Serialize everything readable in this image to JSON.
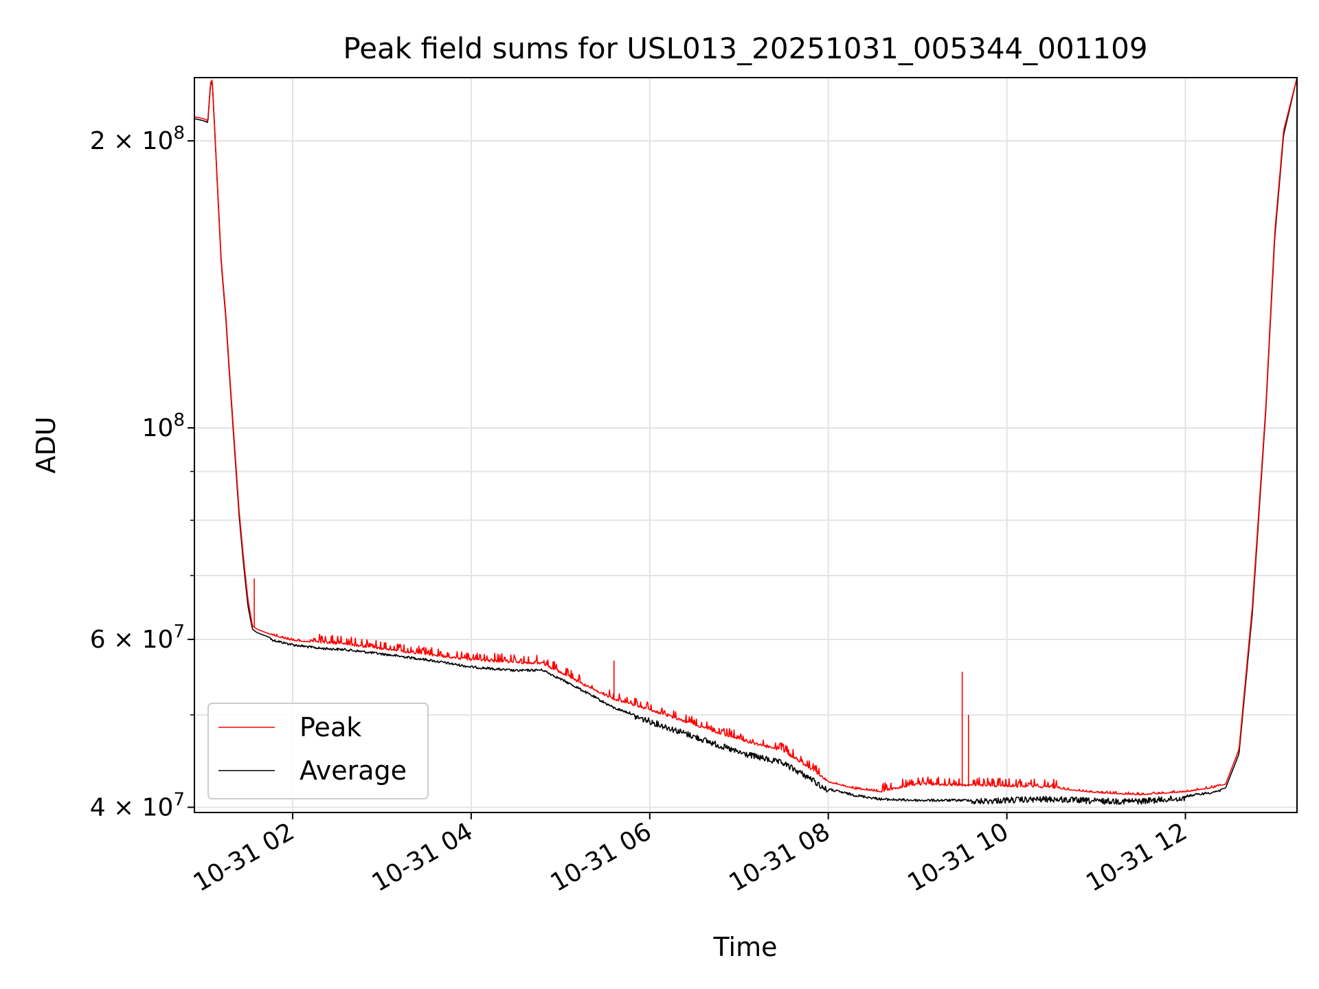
{
  "chart_data": {
    "type": "line",
    "title": "Peak field sums for USL013_20251031_005344_001109",
    "xlabel": "Time",
    "ylabel": "ADU",
    "yscale": "log",
    "x_unit": "hours since 10-31 00:00",
    "xlim": [
      0.9,
      13.25
    ],
    "ylim": [
      39500000,
      233000000
    ],
    "grid": true,
    "legend_position": "lower-left",
    "x_ticks": [
      {
        "value": 2,
        "label": "10-31 02"
      },
      {
        "value": 4,
        "label": "10-31 04"
      },
      {
        "value": 6,
        "label": "10-31 06"
      },
      {
        "value": 8,
        "label": "10-31 08"
      },
      {
        "value": 10,
        "label": "10-31 10"
      },
      {
        "value": 12,
        "label": "10-31 12"
      }
    ],
    "y_major_ticks": [
      {
        "value": 40000000,
        "mantissa": "4",
        "exponent": "7"
      },
      {
        "value": 60000000,
        "mantissa": "6",
        "exponent": "7"
      },
      {
        "value": 100000000,
        "mantissa": "",
        "exponent": "8"
      },
      {
        "value": 200000000,
        "mantissa": "2",
        "exponent": "8"
      }
    ],
    "y_minor_ticks": [
      50000000,
      70000000,
      80000000,
      90000000
    ],
    "series": [
      {
        "name": "Peak",
        "color": "#ff0000",
        "x": [
          0.9,
          1.0,
          1.05,
          1.08,
          1.1,
          1.2,
          1.25,
          1.3,
          1.4,
          1.45,
          1.5,
          1.55,
          1.6,
          1.7,
          1.8,
          2.0,
          2.3,
          2.6,
          3.0,
          3.5,
          4.0,
          4.5,
          4.8,
          5.2,
          5.6,
          6.0,
          6.5,
          7.0,
          7.5,
          7.8,
          8.0,
          8.3,
          8.6,
          9.0,
          9.5,
          10.0,
          10.5,
          11.0,
          11.5,
          12.0,
          12.3,
          12.45,
          12.6,
          12.75,
          12.9,
          13.0,
          13.1,
          13.25
        ],
        "y": [
          212000000,
          211000000,
          210000000,
          230000000,
          232000000,
          150000000,
          132000000,
          112000000,
          82000000,
          73000000,
          66000000,
          62000000,
          61500000,
          61000000,
          60500000,
          59800000,
          59500000,
          59200000,
          58500000,
          57700000,
          57000000,
          56600000,
          56500000,
          54000000,
          51800000,
          50500000,
          48700000,
          47000000,
          45700000,
          43800000,
          42500000,
          41800000,
          41500000,
          42200000,
          42100000,
          42000000,
          41900000,
          41400000,
          41200000,
          41500000,
          41900000,
          42300000,
          46000000,
          65000000,
          105000000,
          160000000,
          205000000,
          233000000
        ]
      },
      {
        "name": "Average",
        "color": "#000000",
        "x": [
          0.9,
          1.0,
          1.05,
          1.08,
          1.1,
          1.2,
          1.25,
          1.3,
          1.4,
          1.45,
          1.5,
          1.55,
          1.6,
          1.7,
          1.8,
          2.0,
          2.3,
          2.6,
          3.0,
          3.5,
          4.0,
          4.5,
          4.8,
          5.2,
          5.6,
          6.0,
          6.5,
          7.0,
          7.5,
          7.8,
          8.0,
          8.3,
          8.6,
          9.0,
          9.5,
          10.0,
          10.5,
          11.0,
          11.5,
          12.0,
          12.3,
          12.45,
          12.6,
          12.75,
          12.9,
          13.0,
          13.1,
          13.25
        ],
        "y": [
          211000000,
          210000000,
          209000000,
          229000000,
          231000000,
          149000000,
          131000000,
          111000000,
          81000000,
          72000000,
          65000000,
          61500000,
          61000000,
          60500000,
          60000000,
          59400000,
          58900000,
          58700000,
          58100000,
          57300000,
          56300000,
          55800000,
          55900000,
          53500000,
          51000000,
          49600000,
          47800000,
          46000000,
          44800000,
          43200000,
          41900000,
          41300000,
          40900000,
          40800000,
          40800000,
          41000000,
          41100000,
          40900000,
          40900000,
          41200000,
          41600000,
          41900000,
          45500000,
          64000000,
          104000000,
          158000000,
          203000000,
          233000000
        ]
      }
    ],
    "spikes": [
      {
        "series": "Peak",
        "x": 1.57,
        "y": 69500000
      },
      {
        "series": "Peak",
        "x": 5.6,
        "y": 57000000
      },
      {
        "series": "Peak",
        "x": 9.5,
        "y": 55500000
      },
      {
        "series": "Peak",
        "x": 9.57,
        "y": 50000000
      }
    ]
  }
}
